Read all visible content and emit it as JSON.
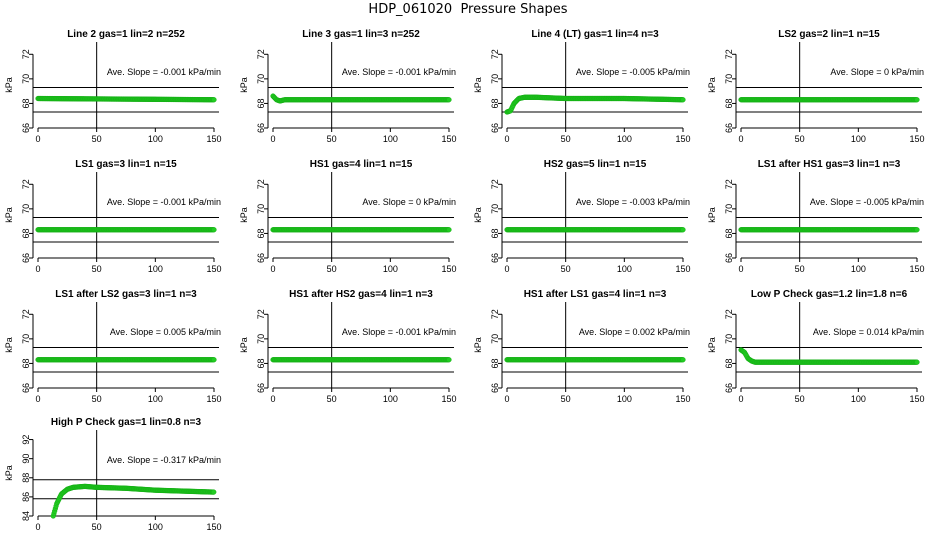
{
  "title": "HDP_061020  Pressure Shapes",
  "colors": {
    "points": "#22cc22",
    "point_stroke": "#11aa11",
    "lines": "#000000"
  },
  "chart_data": [
    {
      "type": "scatter",
      "title": "Line 2 gas=1 lin=2 n=252",
      "ylabel": "kPa",
      "xlim": [
        0,
        150
      ],
      "ylim": [
        66,
        73
      ],
      "xticks": [
        0,
        50,
        100,
        150
      ],
      "yticks": [
        66,
        68,
        70,
        72
      ],
      "hlines": [
        67.3,
        69.3
      ],
      "vline": 50,
      "annotation": "Ave. Slope = -0.001  kPa/min",
      "series": [
        {
          "x": [
            0,
            150
          ],
          "y": [
            68.4,
            68.3
          ]
        }
      ]
    },
    {
      "type": "scatter",
      "title": "Line 3 gas=1 lin=3 n=252",
      "ylabel": "kPa",
      "xlim": [
        0,
        150
      ],
      "ylim": [
        66,
        73
      ],
      "xticks": [
        0,
        50,
        100,
        150
      ],
      "yticks": [
        66,
        68,
        70,
        72
      ],
      "hlines": [
        67.3,
        69.3
      ],
      "vline": 50,
      "annotation": "Ave. Slope = -0.001  kPa/min",
      "series": [
        {
          "x": [
            0,
            3,
            6,
            10,
            150
          ],
          "y": [
            68.6,
            68.3,
            68.2,
            68.3,
            68.3
          ]
        }
      ]
    },
    {
      "type": "scatter",
      "title": "Line 4 (LT) gas=1 lin=4 n=3",
      "ylabel": "kPa",
      "xlim": [
        0,
        150
      ],
      "ylim": [
        66,
        73
      ],
      "xticks": [
        0,
        50,
        100,
        150
      ],
      "yticks": [
        66,
        68,
        70,
        72
      ],
      "hlines": [
        67.3,
        69.3
      ],
      "vline": 50,
      "annotation": "Ave. Slope = -0.005  kPa/min",
      "series": [
        {
          "x": [
            0,
            3,
            6,
            10,
            15,
            25,
            50,
            100,
            150
          ],
          "y": [
            67.3,
            67.4,
            68.0,
            68.4,
            68.5,
            68.5,
            68.4,
            68.4,
            68.3
          ]
        }
      ]
    },
    {
      "type": "scatter",
      "title": "LS2 gas=2 lin=1 n=15",
      "ylabel": "kPa",
      "xlim": [
        0,
        150
      ],
      "ylim": [
        66,
        73
      ],
      "xticks": [
        0,
        50,
        100,
        150
      ],
      "yticks": [
        66,
        68,
        70,
        72
      ],
      "hlines": [
        67.3,
        69.3
      ],
      "vline": 50,
      "annotation": "Ave. Slope = 0  kPa/min",
      "series": [
        {
          "x": [
            0,
            150
          ],
          "y": [
            68.3,
            68.3
          ]
        }
      ]
    },
    {
      "type": "scatter",
      "title": "LS1 gas=3 lin=1 n=15",
      "ylabel": "kPa",
      "xlim": [
        0,
        150
      ],
      "ylim": [
        66,
        73
      ],
      "xticks": [
        0,
        50,
        100,
        150
      ],
      "yticks": [
        66,
        68,
        70,
        72
      ],
      "hlines": [
        67.3,
        69.3
      ],
      "vline": 50,
      "annotation": "Ave. Slope = -0.001  kPa/min",
      "series": [
        {
          "x": [
            0,
            150
          ],
          "y": [
            68.3,
            68.3
          ]
        }
      ]
    },
    {
      "type": "scatter",
      "title": "HS1 gas=4 lin=1 n=15",
      "ylabel": "kPa",
      "xlim": [
        0,
        150
      ],
      "ylim": [
        66,
        73
      ],
      "xticks": [
        0,
        50,
        100,
        150
      ],
      "yticks": [
        66,
        68,
        70,
        72
      ],
      "hlines": [
        67.3,
        69.3
      ],
      "vline": 50,
      "annotation": "Ave. Slope = 0  kPa/min",
      "series": [
        {
          "x": [
            0,
            150
          ],
          "y": [
            68.3,
            68.3
          ]
        }
      ]
    },
    {
      "type": "scatter",
      "title": "HS2 gas=5 lin=1 n=15",
      "ylabel": "kPa",
      "xlim": [
        0,
        150
      ],
      "ylim": [
        66,
        73
      ],
      "xticks": [
        0,
        50,
        100,
        150
      ],
      "yticks": [
        66,
        68,
        70,
        72
      ],
      "hlines": [
        67.3,
        69.3
      ],
      "vline": 50,
      "annotation": "Ave. Slope = -0.003  kPa/min",
      "series": [
        {
          "x": [
            0,
            150
          ],
          "y": [
            68.3,
            68.3
          ]
        }
      ]
    },
    {
      "type": "scatter",
      "title": "LS1 after HS1 gas=3 lin=1 n=3",
      "ylabel": "kPa",
      "xlim": [
        0,
        150
      ],
      "ylim": [
        66,
        73
      ],
      "xticks": [
        0,
        50,
        100,
        150
      ],
      "yticks": [
        66,
        68,
        70,
        72
      ],
      "hlines": [
        67.3,
        69.3
      ],
      "vline": 50,
      "annotation": "Ave. Slope = -0.005  kPa/min",
      "series": [
        {
          "x": [
            0,
            150
          ],
          "y": [
            68.3,
            68.3
          ]
        }
      ]
    },
    {
      "type": "scatter",
      "title": "LS1 after LS2 gas=3 lin=1 n=3",
      "ylabel": "kPa",
      "xlim": [
        0,
        150
      ],
      "ylim": [
        66,
        73
      ],
      "xticks": [
        0,
        50,
        100,
        150
      ],
      "yticks": [
        66,
        68,
        70,
        72
      ],
      "hlines": [
        67.3,
        69.3
      ],
      "vline": 50,
      "annotation": "Ave. Slope = 0.005  kPa/min",
      "series": [
        {
          "x": [
            0,
            150
          ],
          "y": [
            68.3,
            68.3
          ]
        }
      ]
    },
    {
      "type": "scatter",
      "title": "HS1 after HS2 gas=4 lin=1 n=3",
      "ylabel": "kPa",
      "xlim": [
        0,
        150
      ],
      "ylim": [
        66,
        73
      ],
      "xticks": [
        0,
        50,
        100,
        150
      ],
      "yticks": [
        66,
        68,
        70,
        72
      ],
      "hlines": [
        67.3,
        69.3
      ],
      "vline": 50,
      "annotation": "Ave. Slope = -0.001  kPa/min",
      "series": [
        {
          "x": [
            0,
            150
          ],
          "y": [
            68.3,
            68.3
          ]
        }
      ]
    },
    {
      "type": "scatter",
      "title": "HS1 after LS1 gas=4 lin=1 n=3",
      "ylabel": "kPa",
      "xlim": [
        0,
        150
      ],
      "ylim": [
        66,
        73
      ],
      "xticks": [
        0,
        50,
        100,
        150
      ],
      "yticks": [
        66,
        68,
        70,
        72
      ],
      "hlines": [
        67.3,
        69.3
      ],
      "vline": 50,
      "annotation": "Ave. Slope = 0.002  kPa/min",
      "series": [
        {
          "x": [
            0,
            150
          ],
          "y": [
            68.3,
            68.3
          ]
        }
      ]
    },
    {
      "type": "scatter",
      "title": "Low P Check gas=1.2 lin=1.8 n=6",
      "ylabel": "kPa",
      "xlim": [
        0,
        150
      ],
      "ylim": [
        66,
        73
      ],
      "xticks": [
        0,
        50,
        100,
        150
      ],
      "yticks": [
        66,
        68,
        70,
        72
      ],
      "hlines": [
        67.3,
        69.3
      ],
      "vline": 50,
      "annotation": "Ave. Slope = 0.014  kPa/min",
      "series": [
        {
          "x": [
            0,
            3,
            6,
            9,
            12,
            20,
            150
          ],
          "y": [
            69.1,
            68.9,
            68.4,
            68.2,
            68.1,
            68.1,
            68.1
          ]
        }
      ]
    },
    {
      "type": "scatter",
      "title": "High P Check gas=1 lin=0.8 n=3",
      "ylabel": "kPa",
      "xlim": [
        0,
        150
      ],
      "ylim": [
        84,
        93
      ],
      "xticks": [
        0,
        50,
        100,
        150
      ],
      "yticks": [
        84,
        86,
        88,
        90,
        92
      ],
      "hlines": [
        85.8,
        87.8
      ],
      "vline": 50,
      "annotation": "Ave. Slope = -0.317  kPa/min",
      "series": [
        {
          "x": [
            13,
            16,
            20,
            25,
            30,
            40,
            50,
            75,
            100,
            125,
            150
          ],
          "y": [
            84.0,
            85.3,
            86.3,
            86.8,
            87.0,
            87.1,
            87.0,
            86.9,
            86.7,
            86.6,
            86.5
          ]
        }
      ]
    }
  ]
}
